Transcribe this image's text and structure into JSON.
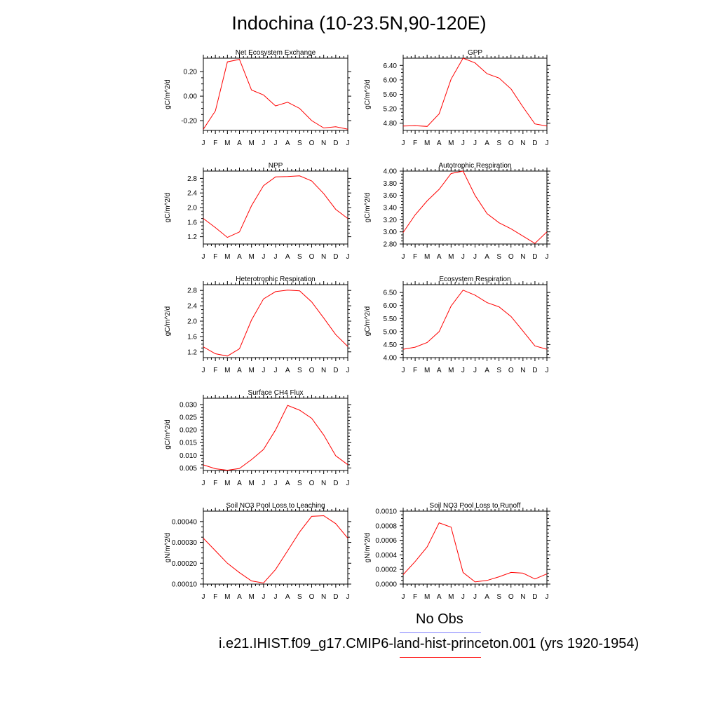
{
  "page_title": "Indochina (10-23.5N,90-120E)",
  "colors": {
    "model_line": "#ff0000",
    "obs_line": "#7f7fff",
    "axis": "#000000"
  },
  "legend": [
    {
      "label": "No Obs",
      "color": "#7f7fff"
    },
    {
      "label": "i.e21.IHIST.f09_g17.CMIP6-land-hist-princeton.001 (yrs 1920-1954)",
      "color": "#ff0000"
    }
  ],
  "chart_data": [
    {
      "type": "line",
      "title": "Net Ecosystem Exchange",
      "ylabel": "gC/m^2/d",
      "categories": [
        "J",
        "F",
        "M",
        "A",
        "M",
        "J",
        "J",
        "A",
        "S",
        "O",
        "N",
        "D",
        "J"
      ],
      "ylim": [
        -0.28,
        0.31
      ],
      "yticks": [
        -0.2,
        0.0,
        0.2
      ],
      "ytick_labels": [
        "-0.20",
        "0.00",
        "0.20"
      ],
      "series": [
        {
          "values": [
            -0.27,
            -0.12,
            0.28,
            0.3,
            0.05,
            0.01,
            -0.08,
            -0.05,
            -0.1,
            -0.2,
            -0.26,
            -0.25,
            -0.27
          ]
        }
      ]
    },
    {
      "type": "line",
      "title": "GPP",
      "ylabel": "gC/m^2/d",
      "categories": [
        "J",
        "F",
        "M",
        "A",
        "M",
        "J",
        "J",
        "A",
        "S",
        "O",
        "N",
        "D",
        "J"
      ],
      "ylim": [
        4.6,
        6.6
      ],
      "yticks": [
        4.8,
        5.2,
        5.6,
        6.0,
        6.4
      ],
      "ytick_labels": [
        "4.80",
        "5.20",
        "5.60",
        "6.00",
        "6.40"
      ],
      "series": [
        {
          "values": [
            4.72,
            4.73,
            4.71,
            5.06,
            6.02,
            6.6,
            6.47,
            6.17,
            6.05,
            5.75,
            5.25,
            4.78,
            4.72
          ]
        }
      ]
    },
    {
      "type": "line",
      "title": "NPP",
      "ylabel": "gC/m^2/d",
      "categories": [
        "J",
        "F",
        "M",
        "A",
        "M",
        "J",
        "J",
        "A",
        "S",
        "O",
        "N",
        "D",
        "J"
      ],
      "ylim": [
        1.0,
        3.0
      ],
      "yticks": [
        1.2,
        1.6,
        2.0,
        2.4,
        2.8
      ],
      "ytick_labels": [
        "1.2",
        "1.6",
        "2.0",
        "2.4",
        "2.8"
      ],
      "series": [
        {
          "values": [
            1.7,
            1.45,
            1.18,
            1.33,
            2.05,
            2.6,
            2.84,
            2.85,
            2.87,
            2.73,
            2.38,
            1.95,
            1.7
          ]
        }
      ]
    },
    {
      "type": "line",
      "title": "Autotrophic Respiration",
      "ylabel": "gC/m^2/d",
      "categories": [
        "J",
        "F",
        "M",
        "A",
        "M",
        "J",
        "J",
        "A",
        "S",
        "O",
        "N",
        "D",
        "J"
      ],
      "ylim": [
        2.8,
        4.0
      ],
      "yticks": [
        2.8,
        3.0,
        3.2,
        3.4,
        3.6,
        3.8,
        4.0
      ],
      "ytick_labels": [
        "2.80",
        "3.00",
        "3.20",
        "3.40",
        "3.60",
        "3.80",
        "4.00"
      ],
      "series": [
        {
          "values": [
            2.99,
            3.28,
            3.51,
            3.7,
            3.96,
            4.0,
            3.6,
            3.3,
            3.15,
            3.05,
            2.93,
            2.81,
            3.0
          ]
        }
      ]
    },
    {
      "type": "line",
      "title": "Heterotrophic Respiration",
      "ylabel": "gC/m^2/d",
      "categories": [
        "J",
        "F",
        "M",
        "A",
        "M",
        "J",
        "J",
        "A",
        "S",
        "O",
        "N",
        "D",
        "J"
      ],
      "ylim": [
        1.05,
        2.95
      ],
      "yticks": [
        1.2,
        1.6,
        2.0,
        2.4,
        2.8
      ],
      "ytick_labels": [
        "1.2",
        "1.6",
        "2.0",
        "2.4",
        "2.8"
      ],
      "series": [
        {
          "values": [
            1.33,
            1.15,
            1.09,
            1.28,
            2.03,
            2.58,
            2.77,
            2.81,
            2.79,
            2.5,
            2.08,
            1.65,
            1.34
          ]
        }
      ]
    },
    {
      "type": "line",
      "title": "Ecosystem Respiration",
      "ylabel": "gC/m^2/d",
      "categories": [
        "J",
        "F",
        "M",
        "A",
        "M",
        "J",
        "J",
        "A",
        "S",
        "O",
        "N",
        "D",
        "J"
      ],
      "ylim": [
        4.0,
        6.8
      ],
      "yticks": [
        4.0,
        4.5,
        5.0,
        5.5,
        6.0,
        6.5
      ],
      "ytick_labels": [
        "4.00",
        "4.50",
        "5.00",
        "5.50",
        "6.00",
        "6.50"
      ],
      "series": [
        {
          "values": [
            4.32,
            4.4,
            4.58,
            5.0,
            5.98,
            6.59,
            6.4,
            6.11,
            5.95,
            5.58,
            5.02,
            4.45,
            4.32
          ]
        }
      ]
    },
    {
      "type": "line",
      "title": "Surface CH4 Flux",
      "ylabel": "gC/m^2/d",
      "categories": [
        "J",
        "F",
        "M",
        "A",
        "M",
        "J",
        "J",
        "A",
        "S",
        "O",
        "N",
        "D",
        "J"
      ],
      "ylim": [
        0.004,
        0.0325
      ],
      "yticks": [
        0.005,
        0.01,
        0.015,
        0.02,
        0.025,
        0.03
      ],
      "ytick_labels": [
        "0.005",
        "0.010",
        "0.015",
        "0.020",
        "0.025",
        "0.030"
      ],
      "series": [
        {
          "values": [
            0.0062,
            0.0047,
            0.0041,
            0.0048,
            0.0083,
            0.0123,
            0.02,
            0.0297,
            0.0278,
            0.0246,
            0.018,
            0.0098,
            0.0063
          ]
        }
      ]
    },
    {
      "type": "line",
      "title": "Soil NO3 Pool Loss to Leaching",
      "ylabel": "gN/m^2/d",
      "categories": [
        "J",
        "F",
        "M",
        "A",
        "M",
        "J",
        "J",
        "A",
        "S",
        "O",
        "N",
        "D",
        "J"
      ],
      "ylim": [
        0.0001,
        0.00045
      ],
      "yticks": [
        0.0001,
        0.0002,
        0.0003,
        0.0004
      ],
      "ytick_labels": [
        "0.00010",
        "0.00020",
        "0.00030",
        "0.00040"
      ],
      "series": [
        {
          "values": [
            0.00032,
            0.00026,
            0.0002,
            0.000155,
            0.000115,
            0.000105,
            0.00017,
            0.00026,
            0.00035,
            0.000425,
            0.000428,
            0.00039,
            0.00032
          ]
        }
      ]
    },
    {
      "type": "line",
      "title": "Soil NO3 Pool Loss to Runoff",
      "ylabel": "gN/m^2/d",
      "categories": [
        "J",
        "F",
        "M",
        "A",
        "M",
        "J",
        "J",
        "A",
        "S",
        "O",
        "N",
        "D",
        "J"
      ],
      "ylim": [
        0.0,
        0.001
      ],
      "yticks": [
        0.0,
        0.0002,
        0.0004,
        0.0006,
        0.0008,
        0.001
      ],
      "ytick_labels": [
        "0.0000",
        "0.0002",
        "0.0004",
        "0.0006",
        "0.0008",
        "0.0010"
      ],
      "series": [
        {
          "values": [
            0.00013,
            0.00031,
            0.00051,
            0.00084,
            0.00078,
            0.00016,
            3e-05,
            5e-05,
            0.0001,
            0.00016,
            0.00015,
            7e-05,
            0.00014
          ]
        }
      ]
    }
  ]
}
